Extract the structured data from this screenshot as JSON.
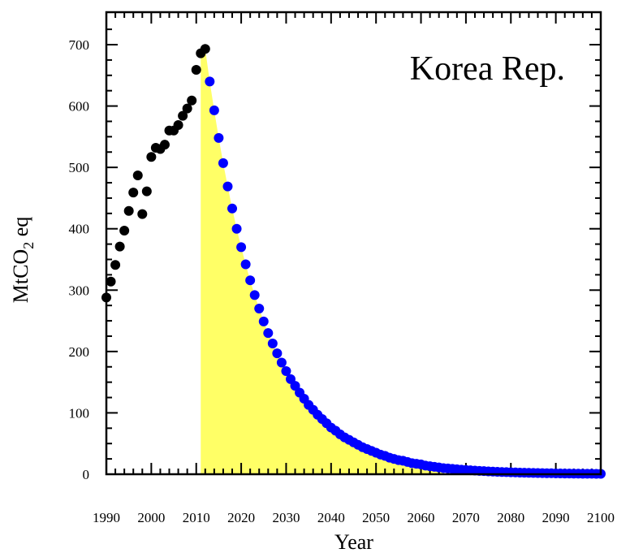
{
  "chart_data": {
    "type": "scatter",
    "title": "Korea Rep.",
    "xlabel": "Year",
    "ylabel": "MtCO",
    "ylabel_subscript": "2",
    "ylabel_suffix": " eq",
    "xlim": [
      1990,
      2100
    ],
    "ylim": [
      0,
      700
    ],
    "x_ticks": [
      "1990",
      "2000",
      "2010",
      "2020",
      "2030",
      "2040",
      "2050",
      "2060",
      "2070",
      "2080",
      "2090",
      "2100"
    ],
    "y_ticks": [
      "0",
      "100",
      "200",
      "300",
      "400",
      "500",
      "600",
      "700"
    ],
    "grid": false,
    "legend": "none",
    "series": [
      {
        "color": "#000000",
        "x": [
          1990,
          1991,
          1992,
          1993,
          1994,
          1995,
          1996,
          1997,
          1998,
          1999,
          2000,
          2001,
          2002,
          2003,
          2004,
          2005,
          2006,
          2007,
          2008,
          2009,
          2010,
          2011,
          2012
        ],
        "y": [
          288,
          314,
          341,
          371,
          397,
          429,
          459,
          487,
          424,
          461,
          517,
          532,
          530,
          537,
          560,
          560,
          569,
          584,
          596,
          609,
          659,
          686,
          693
        ]
      },
      {
        "color": "#0000ff",
        "x": [
          2013,
          2014,
          2015,
          2016,
          2017,
          2018,
          2019,
          2020,
          2021,
          2022,
          2023,
          2024,
          2025,
          2026,
          2027,
          2028,
          2029,
          2030,
          2031,
          2032,
          2033,
          2034,
          2035,
          2036,
          2037,
          2038,
          2039,
          2040,
          2041,
          2042,
          2043,
          2044,
          2045,
          2046,
          2047,
          2048,
          2049,
          2050,
          2051,
          2052,
          2053,
          2054,
          2055,
          2056,
          2057,
          2058,
          2059,
          2060,
          2061,
          2062,
          2063,
          2064,
          2065,
          2066,
          2067,
          2068,
          2069,
          2070,
          2071,
          2072,
          2073,
          2074,
          2075,
          2076,
          2077,
          2078,
          2079,
          2080,
          2081,
          2082,
          2083,
          2084,
          2085,
          2086,
          2087,
          2088,
          2089,
          2090,
          2091,
          2092,
          2093,
          2094,
          2095,
          2096,
          2097,
          2098,
          2099,
          2100
        ],
        "y": [
          640,
          593,
          548,
          507,
          469,
          433,
          400,
          370,
          342,
          316,
          292,
          270,
          249,
          230,
          213,
          197,
          182,
          168,
          155,
          144,
          133,
          123,
          113,
          105,
          97,
          90,
          83,
          76,
          71,
          65,
          60,
          56,
          52,
          48,
          44,
          41,
          38,
          35,
          32,
          30,
          27,
          25,
          23,
          22,
          20,
          18,
          17,
          16,
          14,
          13,
          12,
          11,
          10,
          9.5,
          8.8,
          8.1,
          7.5,
          6.9,
          6.4,
          5.9,
          5.5,
          5.1,
          4.7,
          4.3,
          4.0,
          3.7,
          3.4,
          3.2,
          2.9,
          2.7,
          2.5,
          2.3,
          2.1,
          2.0,
          1.8,
          1.7,
          1.6,
          1.4,
          1.3,
          1.2,
          1.1,
          1.0,
          0.95,
          0.88,
          0.8,
          0.75,
          0.69,
          0.64
        ]
      }
    ],
    "shaded_area": {
      "color": "#ffff66",
      "x": [
        2011,
        2012,
        2013,
        2014,
        2015,
        2016,
        2017,
        2018,
        2019,
        2020,
        2021,
        2022,
        2023,
        2024,
        2025,
        2026,
        2027,
        2028,
        2029,
        2030,
        2032,
        2034,
        2036,
        2038,
        2040,
        2043,
        2046,
        2050,
        2055,
        2060,
        2065
      ],
      "y": [
        693,
        693,
        640,
        593,
        548,
        507,
        469,
        433,
        400,
        370,
        342,
        316,
        292,
        270,
        249,
        230,
        213,
        197,
        182,
        168,
        144,
        123,
        105,
        90,
        76,
        60,
        48,
        35,
        23,
        16,
        10
      ]
    }
  }
}
